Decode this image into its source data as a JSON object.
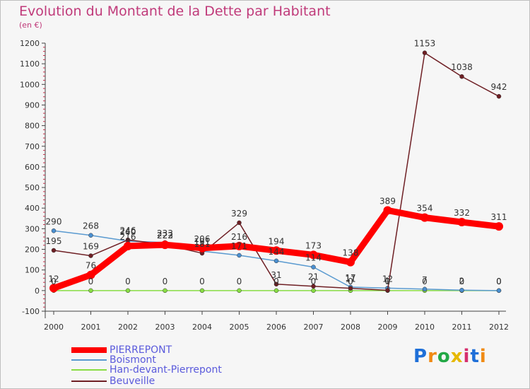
{
  "title": "Evolution du Montant de la Dette par Habitant",
  "subtitle": "(en €)",
  "logo_text": "Proxiti",
  "chart_data": {
    "type": "line",
    "title": "Evolution du Montant de la Dette par Habitant",
    "ylabel": "(en €)",
    "xlabel": "",
    "x": [
      "2000",
      "2001",
      "2002",
      "2003",
      "2004",
      "2005",
      "2006",
      "2007",
      "2008",
      "2009",
      "2010",
      "2011",
      "2012"
    ],
    "ylim": [
      -100,
      1200
    ],
    "yticks": [
      -100,
      0,
      100,
      200,
      300,
      400,
      500,
      600,
      700,
      800,
      900,
      1000,
      1100,
      1200
    ],
    "grid": false,
    "legend_position": "bottom-left",
    "series": [
      {
        "name": "PIERREPONT",
        "color": "#ff0000",
        "values": [
          12,
          76,
          216,
          222,
          206,
          216,
          194,
          173,
          138,
          389,
          354,
          332,
          311
        ]
      },
      {
        "name": "Boismont",
        "color": "#5a9ad0",
        "values": [
          290,
          268,
          240,
          233,
          191,
          171,
          144,
          114,
          17,
          12,
          7,
          2,
          0
        ]
      },
      {
        "name": "Han-devant-Pierrepont",
        "color": "#88dd44",
        "values": [
          0,
          0,
          0,
          0,
          0,
          0,
          0,
          0,
          0,
          0,
          0,
          0,
          0
        ]
      },
      {
        "name": "Beuveille",
        "color": "#6e1f24",
        "values": [
          195,
          169,
          246,
          223,
          181,
          329,
          31,
          21,
          11,
          1,
          1153,
          1038,
          942
        ]
      }
    ]
  }
}
